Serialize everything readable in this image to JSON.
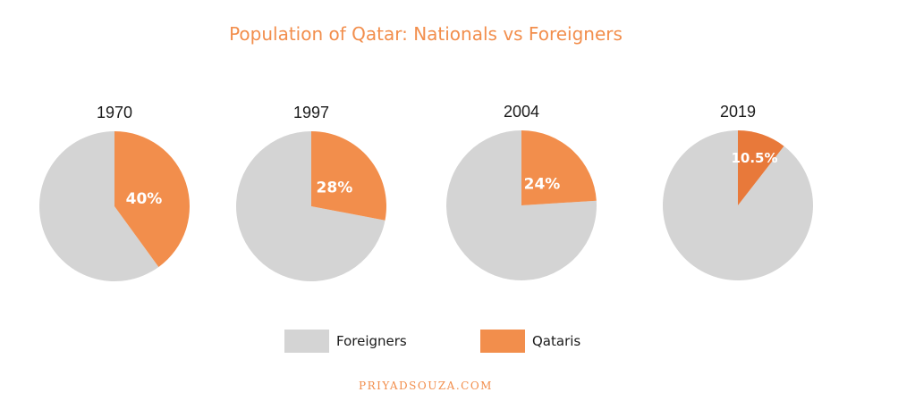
{
  "chart_data": {
    "type": "pie",
    "title": "Population of Qatar: Nationals vs Foreigners",
    "legend": {
      "placement": "bottom",
      "entries": [
        {
          "name": "Foreigners",
          "color": "#d4d4d4"
        },
        {
          "name": "Qataris",
          "color": "#f28e4c"
        }
      ]
    },
    "pies": [
      {
        "year": "1970",
        "qataris": 40,
        "foreigners": 60,
        "label": "40%"
      },
      {
        "year": "1997",
        "qataris": 28,
        "foreigners": 72,
        "label": "28%"
      },
      {
        "year": "2004",
        "qataris": 24,
        "foreigners": 76,
        "label": "24%"
      },
      {
        "year": "2019",
        "qataris": 10.5,
        "foreigners": 89.5,
        "label": "10.5%"
      }
    ]
  },
  "colors": {
    "title": "#f28e4c",
    "qataris_dark": "#e8793a",
    "watermark": "#f28e4c"
  },
  "watermark": "PRIYADSOUZA.COM"
}
